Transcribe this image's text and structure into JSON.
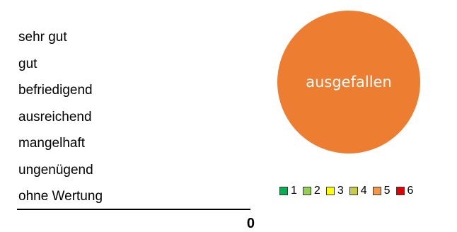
{
  "grades": [
    "sehr gut",
    "gut",
    "befriedigend",
    "ausreichend",
    "mangelhaft",
    "ungenügend",
    "ohne Wertung"
  ],
  "total": "0",
  "chart_data": {
    "type": "pie",
    "slices": [
      {
        "label": "ausgefallen",
        "value": 1,
        "color": "#ED7D31"
      }
    ],
    "center_label": "ausgefallen",
    "legend": [
      {
        "name": "1",
        "color": "#00B050"
      },
      {
        "name": "2",
        "color": "#92D050"
      },
      {
        "name": "3",
        "color": "#FFFF00"
      },
      {
        "name": "4",
        "color": "#C9C94A"
      },
      {
        "name": "5",
        "color": "#F79646"
      },
      {
        "name": "6",
        "color": "#E00000"
      }
    ],
    "legend_position": "bottom"
  }
}
